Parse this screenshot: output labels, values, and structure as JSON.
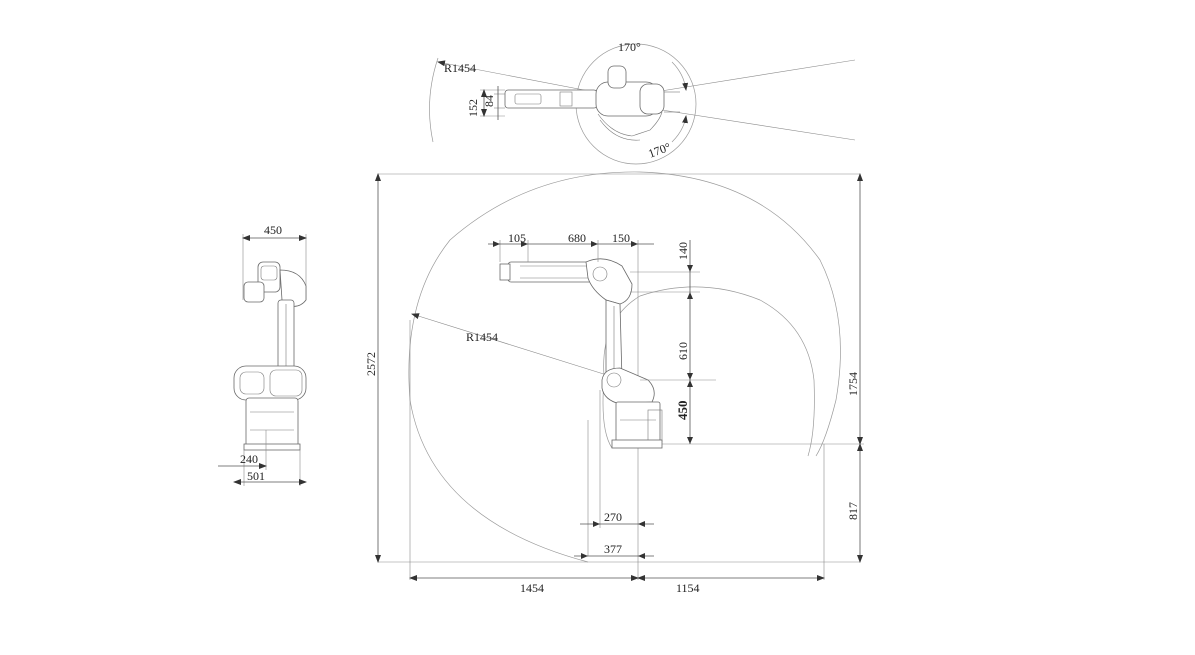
{
  "top_view": {
    "radius": "R1454",
    "angle_upper": "170°",
    "angle_lower": "170°",
    "dim_152": "152",
    "dim_84": "84"
  },
  "side_view": {
    "dim_450": "450",
    "dim_240": "240",
    "dim_501": "501"
  },
  "main_view": {
    "radius": "R1454",
    "dim_105": "105",
    "dim_680": "680",
    "dim_150": "150",
    "dim_140": "140",
    "dim_610": "610",
    "dim_450": "450",
    "dim_1754": "1754",
    "dim_817": "817",
    "dim_2572": "2572",
    "dim_270": "270",
    "dim_377": "377",
    "dim_1454": "1454",
    "dim_1154": "1154"
  },
  "colors": {
    "line": "#555555",
    "arc": "#9a9a9a",
    "text": "#222222"
  }
}
